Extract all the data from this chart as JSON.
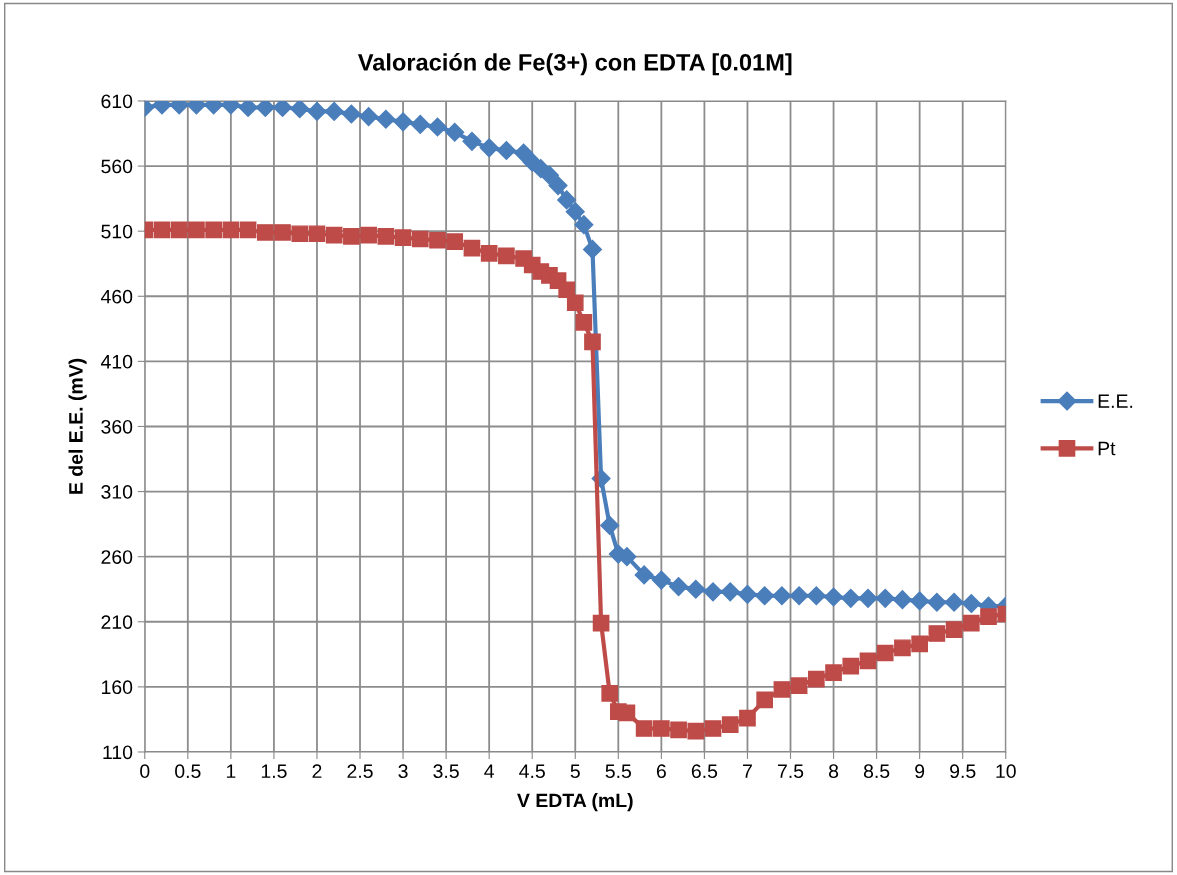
{
  "chart_data": {
    "type": "line",
    "title": "Valoración de Fe(3+) con EDTA [0.01M]",
    "xlabel": "V EDTA (mL)",
    "ylabel": "E del E.E. (mV)",
    "x": [
      0,
      0.2,
      0.4,
      0.6,
      0.8,
      1.0,
      1.2,
      1.4,
      1.6,
      1.8,
      2.0,
      2.2,
      2.4,
      2.6,
      2.8,
      3.0,
      3.2,
      3.4,
      3.6,
      3.8,
      4.0,
      4.2,
      4.4,
      4.5,
      4.6,
      4.7,
      4.8,
      4.9,
      5.0,
      5.1,
      5.2,
      5.3,
      5.4,
      5.5,
      5.6,
      5.8,
      6.0,
      6.2,
      6.4,
      6.6,
      6.8,
      7.0,
      7.2,
      7.4,
      7.6,
      7.8,
      8.0,
      8.2,
      8.4,
      8.6,
      8.8,
      9.0,
      9.2,
      9.4,
      9.6,
      9.8,
      10.0
    ],
    "series": [
      {
        "name": "E.E.",
        "color": "#4a7ebb",
        "marker": "diamond",
        "values": [
          605,
          607,
          607,
          607,
          607,
          607,
          605,
          605,
          605,
          604,
          602,
          602,
          600,
          598,
          596,
          594,
          592,
          590,
          586,
          579,
          574,
          572,
          570,
          563,
          558,
          553,
          545,
          534,
          525,
          515,
          496,
          320,
          284,
          262,
          260,
          246,
          242,
          237,
          235,
          233,
          233,
          231,
          230,
          230,
          230,
          230,
          229,
          228,
          228,
          228,
          227,
          226,
          225,
          225,
          224,
          222,
          222
        ]
      },
      {
        "name": "Pt",
        "color": "#be4b48",
        "marker": "square",
        "values": [
          511,
          511,
          511,
          511,
          511,
          511,
          511,
          509,
          509,
          508,
          508,
          507,
          506,
          507,
          506,
          505,
          504,
          503,
          502,
          497,
          493,
          491,
          489,
          484,
          479,
          476,
          472,
          465,
          455,
          440,
          425,
          209,
          155,
          141,
          140,
          128,
          128,
          127,
          126,
          128,
          131,
          136,
          150,
          158,
          161,
          166,
          171,
          176,
          180,
          186,
          190,
          193,
          201,
          204,
          209,
          214,
          216
        ]
      }
    ],
    "xlim": [
      0,
      10
    ],
    "xticks": [
      0,
      0.5,
      1,
      1.5,
      2,
      2.5,
      3,
      3.5,
      4,
      4.5,
      5,
      5.5,
      6,
      6.5,
      7,
      7.5,
      8,
      8.5,
      9,
      9.5,
      10
    ],
    "ylim": [
      110,
      610
    ],
    "yticks": [
      110,
      160,
      210,
      260,
      310,
      360,
      410,
      460,
      510,
      560,
      610
    ],
    "grid": true,
    "legend": "right",
    "line_style": "solid"
  }
}
